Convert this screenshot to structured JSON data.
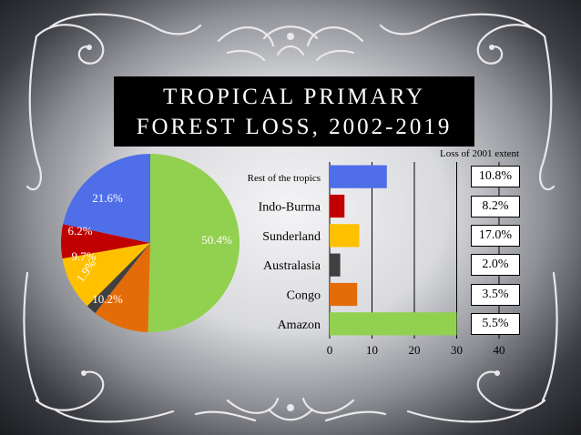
{
  "title_line1": "TROPICAL PRIMARY",
  "title_line2": "FOREST LOSS, 2002-2019",
  "extent_header": "Loss of 2001 extent",
  "colors": {
    "amazon": "#92d050",
    "congo": "#e36c09",
    "australasia": "#404040",
    "sunderland": "#ffc000",
    "indo_burma": "#c00000",
    "rest": "#4f6ee8"
  },
  "chart_data": [
    {
      "type": "pie",
      "slices": [
        {
          "label": "50.4%",
          "value": 50.4,
          "color": "#92d050"
        },
        {
          "label": "10.2%",
          "value": 10.2,
          "color": "#e36c09"
        },
        {
          "label": "1.9%",
          "value": 1.9,
          "color": "#404040"
        },
        {
          "label": "9.7%",
          "value": 9.7,
          "color": "#ffc000"
        },
        {
          "label": "6.2%",
          "value": 6.2,
          "color": "#c00000"
        },
        {
          "label": "21.6%",
          "value": 21.6,
          "color": "#4f6ee8"
        }
      ]
    },
    {
      "type": "bar",
      "orientation": "horizontal",
      "categories": [
        "Rest of the tropics",
        "Indo-Burma",
        "Sunderland",
        "Australasia",
        "Congo",
        "Amazon"
      ],
      "values": [
        13.5,
        3.5,
        7,
        2.5,
        6.5,
        30
      ],
      "colors": [
        "#4f6ee8",
        "#c00000",
        "#ffc000",
        "#404040",
        "#e36c09",
        "#92d050"
      ],
      "xlim": [
        0,
        40
      ],
      "xticks": [
        "0",
        "10",
        "20",
        "30",
        "40"
      ],
      "grid": true
    }
  ],
  "extent_values": [
    "10.8%",
    "8.2%",
    "17.0%",
    "2.0%",
    "3.5%",
    "5.5%"
  ]
}
